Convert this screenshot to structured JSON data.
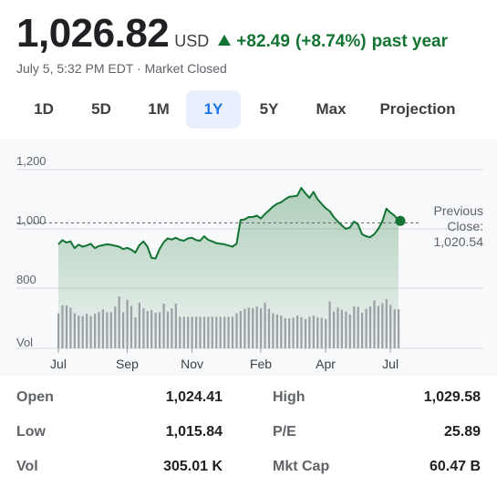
{
  "quote": {
    "price": "1,026.82",
    "currency": "USD",
    "change": "+82.49",
    "change_pct": "(+8.74%)",
    "period": "past year",
    "change_color": "#137333",
    "timestamp": "July 5, 5:32 PM EDT · Market Closed"
  },
  "tabs": [
    {
      "label": "1D",
      "active": false
    },
    {
      "label": "5D",
      "active": false
    },
    {
      "label": "1M",
      "active": false
    },
    {
      "label": "1Y",
      "active": true
    },
    {
      "label": "5Y",
      "active": false
    },
    {
      "label": "Max",
      "active": false
    },
    {
      "label": "Projection",
      "active": false
    }
  ],
  "chart_data": {
    "type": "area",
    "y_ticks": [
      "1,200",
      "1,000",
      "800"
    ],
    "y_tick_values": [
      1200,
      1000,
      800
    ],
    "ylim": [
      720,
      1240
    ],
    "x_tick_labels": [
      "Jul",
      "Sep",
      "Nov",
      "Feb",
      "Apr",
      "Jul"
    ],
    "x_tick_index": [
      0,
      17,
      33,
      50,
      66,
      82
    ],
    "volume_label": "Vol",
    "previous_close_label": [
      "Previous",
      "Close:",
      "1,020.54"
    ],
    "previous_close": 1020.54,
    "line_color": "#137333",
    "series": [
      {
        "values": [
          948,
          962,
          954,
          958,
          935,
          947,
          940,
          944,
          950,
          935,
          942,
          945,
          948,
          946,
          943,
          940,
          932,
          936,
          930,
          920,
          945,
          958,
          940,
          902,
          900,
          932,
          955,
          968,
          964,
          970,
          963,
          960,
          968,
          970,
          962,
          960,
          975,
          963,
          958,
          952,
          950,
          948,
          944,
          940,
          950,
          1030,
          1032,
          1040,
          1040,
          1045,
          1035,
          1050,
          1062,
          1075,
          1085,
          1090,
          1100,
          1108,
          1110,
          1112,
          1138,
          1120,
          1105,
          1125,
          1100,
          1085,
          1070,
          1060,
          1040,
          1025,
          1012,
          1000,
          1005,
          1025,
          1015,
          982,
          975,
          972,
          982,
          1000,
          1025,
          1068,
          1055,
          1045,
          1027
        ],
        "volume": [
          0.62,
          0.76,
          0.76,
          0.72,
          0.62,
          0.58,
          0.57,
          0.61,
          0.57,
          0.61,
          0.64,
          0.69,
          0.64,
          0.64,
          0.74,
          0.92,
          0.64,
          0.86,
          0.75,
          0.55,
          0.81,
          0.71,
          0.66,
          0.68,
          0.63,
          0.64,
          0.79,
          0.65,
          0.71,
          0.79,
          0.56,
          0.56,
          0.56,
          0.56,
          0.56,
          0.56,
          0.56,
          0.56,
          0.56,
          0.56,
          0.56,
          0.56,
          0.56,
          0.56,
          0.62,
          0.66,
          0.7,
          0.72,
          0.71,
          0.74,
          0.71,
          0.81,
          0.7,
          0.62,
          0.6,
          0.58,
          0.53,
          0.53,
          0.54,
          0.58,
          0.55,
          0.52,
          0.56,
          0.58,
          0.55,
          0.54,
          0.52,
          0.83,
          0.65,
          0.72,
          0.68,
          0.65,
          0.6,
          0.74,
          0.73,
          0.63,
          0.7,
          0.74,
          0.85,
          0.75,
          0.8,
          0.87,
          0.77,
          0.69,
          0.69
        ]
      }
    ]
  },
  "stats": [
    {
      "label": "Open",
      "value": "1,024.41",
      "label2": "High",
      "value2": "1,029.58"
    },
    {
      "label": "Low",
      "value": "1,015.84",
      "label2": "P/E",
      "value2": "25.89"
    },
    {
      "label": "Vol",
      "value": "305.01 K",
      "label2": "Mkt Cap",
      "value2": "60.47 B"
    }
  ]
}
